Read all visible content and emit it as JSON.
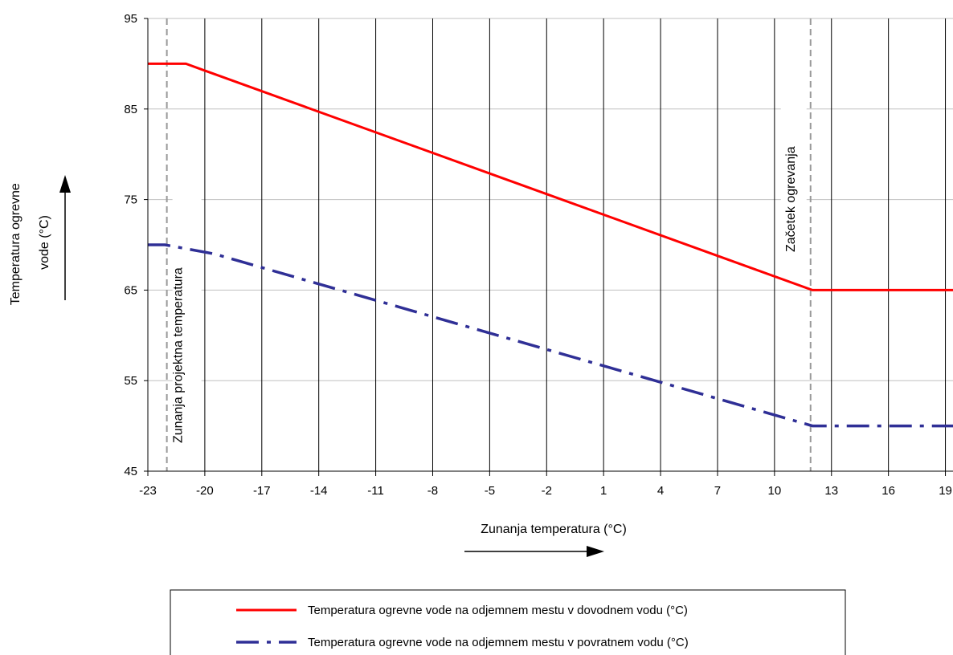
{
  "chart_data": {
    "type": "line",
    "xlabel": "Zunanja temperatura (°C)",
    "ylabel_lines": [
      "Temperatura ogrevne",
      "vode (°C)"
    ],
    "xlim": [
      -23,
      19.4
    ],
    "ylim": [
      45,
      95
    ],
    "x_ticks": [
      -23,
      -20,
      -17,
      -14,
      -11,
      -8,
      -5,
      -2,
      1,
      4,
      7,
      10,
      13,
      16,
      19
    ],
    "y_ticks": [
      45,
      55,
      65,
      75,
      85,
      95
    ],
    "grid": {
      "vertical": true,
      "horizontal": true
    },
    "series": [
      {
        "name": "Temperatura ogrevne vode na odjemnem mestu v dovodnem vodu (°C)",
        "color": "#ff0000",
        "style": "solid",
        "x": [
          -23,
          -21,
          12,
          19.4
        ],
        "y": [
          90,
          90,
          65,
          65
        ]
      },
      {
        "name": "Temperatura ogrevne vode na odjemnem mestu v povratnem vodu (°C)",
        "color": "#2f2f96",
        "style": "dash-dot",
        "x": [
          -23,
          -22.1,
          -19.5,
          12,
          19.4
        ],
        "y": [
          70,
          70,
          69,
          50,
          50
        ]
      }
    ],
    "reference_lines": [
      {
        "x": -22,
        "label": "Zunanja projektna  temperatura"
      },
      {
        "x": 11.9,
        "label": "Začetek ogrevanja"
      }
    ],
    "legend_position": "bottom"
  }
}
